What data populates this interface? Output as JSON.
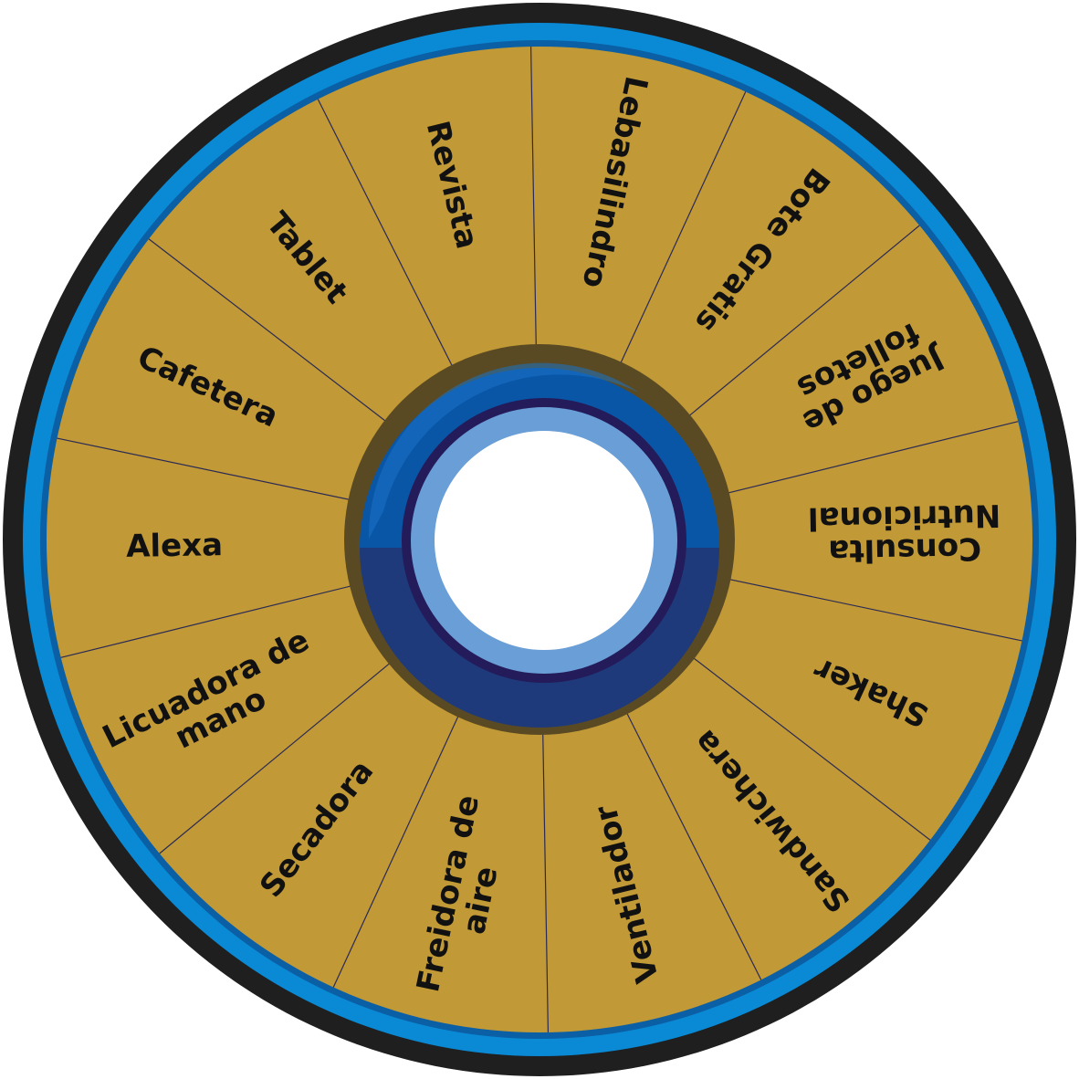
{
  "wheel": {
    "segments": [
      {
        "lines": [
          "Lebasilindro"
        ]
      },
      {
        "lines": [
          "Bote Gratis"
        ]
      },
      {
        "lines": [
          "Juego de",
          "folletos"
        ]
      },
      {
        "lines": [
          "Consulta",
          "Nutricional"
        ]
      },
      {
        "lines": [
          "Shaker"
        ]
      },
      {
        "lines": [
          "Sandwichera"
        ]
      },
      {
        "lines": [
          "Ventilador"
        ]
      },
      {
        "lines": [
          "Freidora de",
          "aire"
        ]
      },
      {
        "lines": [
          "Secadora"
        ]
      },
      {
        "lines": [
          "Licuadora de",
          "mano"
        ]
      },
      {
        "lines": [
          "Alexa"
        ]
      },
      {
        "lines": [
          "Cafetera"
        ]
      },
      {
        "lines": [
          "Tablet"
        ]
      },
      {
        "lines": [
          "Revista"
        ]
      }
    ]
  },
  "colors": {
    "outer_ring": "#1f1f1f",
    "blue_ring": "#0a8ad4",
    "blue_ring_inner": "#0b5fa5",
    "segment_fill": "#c19936",
    "divider": "#2a2a55",
    "hub_shadow": "#5a4a23",
    "hub_top": "#0a56a6",
    "hub_bottom": "#1e3a7a",
    "hub_inner_ring": "#231b5a",
    "hub_light_ring": "#6a9ed6",
    "hub_center": "#ffffff"
  }
}
